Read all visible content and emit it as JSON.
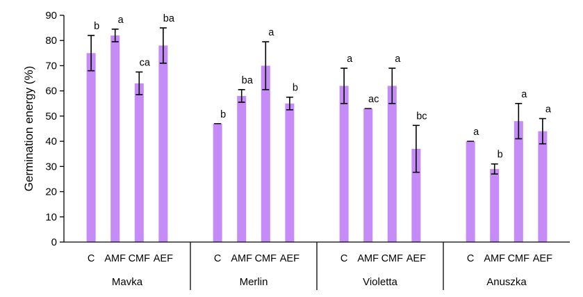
{
  "chart_data": {
    "type": "bar",
    "title": "",
    "xlabel": "",
    "ylabel": "Germination  energy (%)",
    "ylim": [
      0,
      90
    ],
    "yticks": [
      0,
      10,
      20,
      30,
      40,
      50,
      60,
      70,
      80,
      90
    ],
    "grid": false,
    "legend": "none",
    "bar_color": "#c58bf7",
    "groups": [
      {
        "name": "Mavka",
        "bars": [
          {
            "category": "C",
            "value": 75,
            "error": 7,
            "sig": "b"
          },
          {
            "category": "AMF",
            "value": 82,
            "error": 2.5,
            "sig": "a"
          },
          {
            "category": "CMF",
            "value": 63,
            "error": 4.5,
            "sig": "ca"
          },
          {
            "category": "AEF",
            "value": 78,
            "error": 7,
            "sig": "ba"
          }
        ]
      },
      {
        "name": "Merlin",
        "bars": [
          {
            "category": "C",
            "value": 47,
            "error": 0,
            "sig": "b"
          },
          {
            "category": "AMF",
            "value": 58,
            "error": 2.5,
            "sig": "ba"
          },
          {
            "category": "CMF",
            "value": 70,
            "error": 9.5,
            "sig": "a"
          },
          {
            "category": "AEF",
            "value": 55,
            "error": 2.5,
            "sig": "b"
          }
        ]
      },
      {
        "name": "Violetta",
        "bars": [
          {
            "category": "C",
            "value": 62,
            "error": 7,
            "sig": "a"
          },
          {
            "category": "AMF",
            "value": 53,
            "error": 0,
            "sig": "ac"
          },
          {
            "category": "CMF",
            "value": 62,
            "error": 7,
            "sig": "a"
          },
          {
            "category": "AEF",
            "value": 37,
            "error": 9.3,
            "sig": "bc"
          }
        ]
      },
      {
        "name": "Anuszka",
        "bars": [
          {
            "category": "C",
            "value": 40,
            "error": 0,
            "sig": "a"
          },
          {
            "category": "AMF",
            "value": 29,
            "error": 2,
            "sig": "b"
          },
          {
            "category": "CMF",
            "value": 48,
            "error": 7,
            "sig": "a"
          },
          {
            "category": "AEF",
            "value": 44,
            "error": 5,
            "sig": "a"
          }
        ]
      }
    ]
  }
}
